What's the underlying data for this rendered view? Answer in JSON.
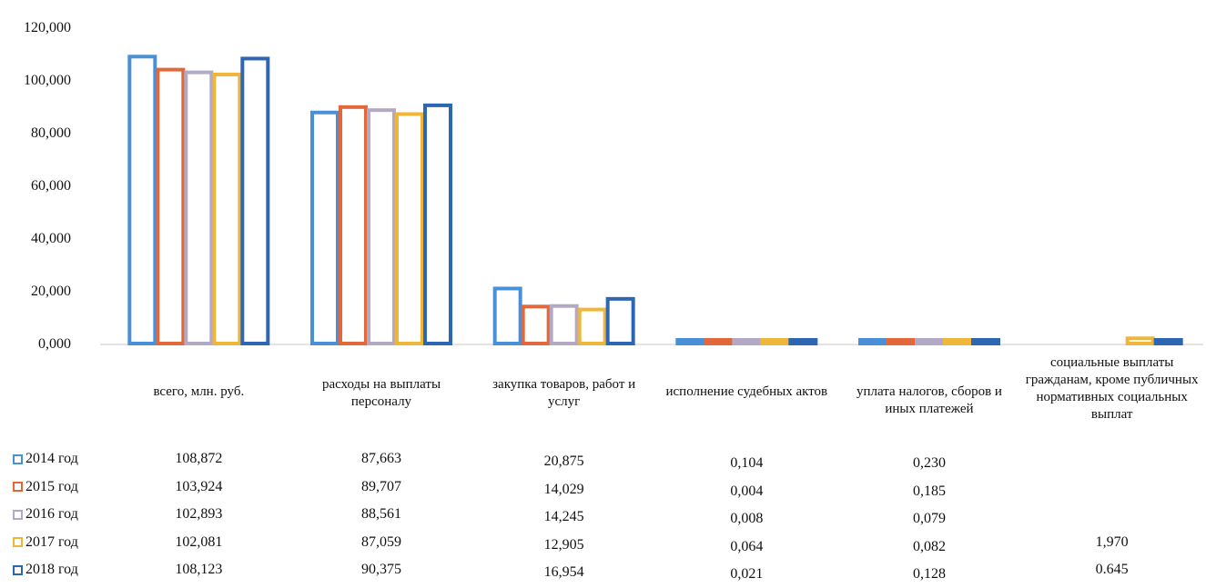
{
  "chart_data": {
    "type": "bar",
    "categories": [
      "всего, млн. руб.",
      "расходы на выплаты персоналу",
      "закупка товаров, работ и услуг",
      "исполнение судебных актов",
      "уплата налогов, сборов и иных платежей",
      "социальные выплаты гражданам, кроме публичных нормативных социальных выплат"
    ],
    "series": [
      {
        "name": "2014 год",
        "color": "#4a90d9",
        "values": [
          108.872,
          87.663,
          20.875,
          0.104,
          0.23,
          null
        ],
        "labels": [
          "108,872",
          "87,663",
          "20,875",
          "0,104",
          "0,230",
          ""
        ]
      },
      {
        "name": "2015 год",
        "color": "#e2683c",
        "values": [
          103.924,
          89.707,
          14.029,
          0.004,
          0.185,
          null
        ],
        "labels": [
          "103,924",
          "89,707",
          "14,029",
          "0,004",
          "0,185",
          ""
        ]
      },
      {
        "name": "2016 год",
        "color": "#b3a9c4",
        "values": [
          102.893,
          88.561,
          14.245,
          0.008,
          0.079,
          null
        ],
        "labels": [
          "102,893",
          "88,561",
          "14,245",
          "0,008",
          "0,079",
          ""
        ]
      },
      {
        "name": "2017 год",
        "color": "#f0b63a",
        "values": [
          102.081,
          87.059,
          12.905,
          0.064,
          0.082,
          1.97
        ],
        "labels": [
          "102,081",
          "87,059",
          "12,905",
          "0,064",
          "0,082",
          "1,970"
        ]
      },
      {
        "name": "2018 год",
        "color": "#2d66b3",
        "values": [
          108.123,
          90.375,
          16.954,
          0.021,
          0.128,
          0.645
        ],
        "labels": [
          "108,123",
          "90,375",
          "16,954",
          "0,021",
          "0,128",
          "0.645"
        ]
      }
    ],
    "y_ticks": [
      "0,000",
      "20,000",
      "40,000",
      "60,000",
      "80,000",
      "100,000",
      "120,000"
    ],
    "ylim": [
      0,
      120
    ],
    "grid": false,
    "legend": "left, as data table"
  }
}
